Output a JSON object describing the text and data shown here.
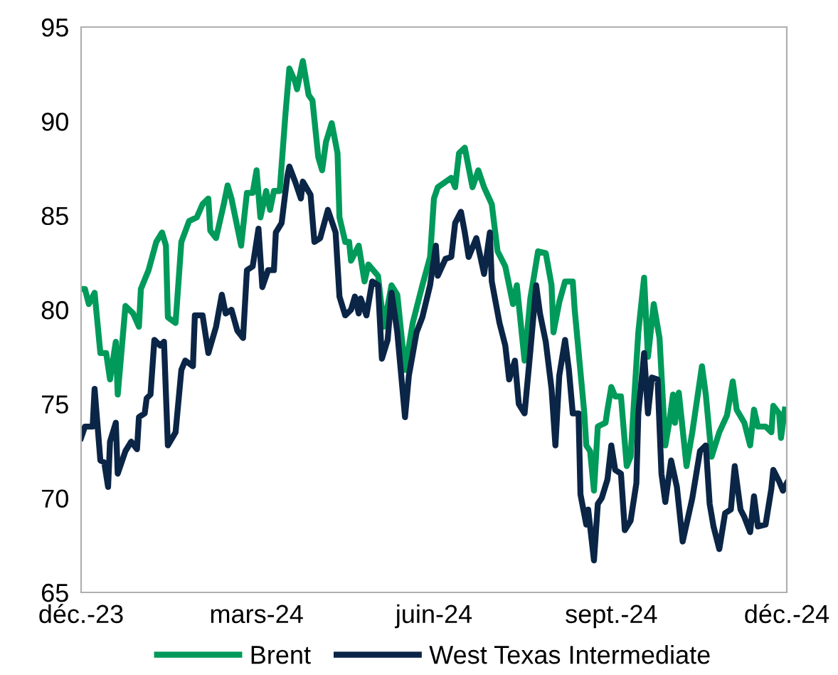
{
  "chart_data": {
    "type": "line",
    "xlim": [
      "2023-12-01",
      "2024-12-01"
    ],
    "xticks": [
      {
        "value": "2023-12-01",
        "label": "déc.-23"
      },
      {
        "value": "2024-03-01",
        "label": "mars-24"
      },
      {
        "value": "2024-06-01",
        "label": "juin-24"
      },
      {
        "value": "2024-09-01",
        "label": "sept.-24"
      },
      {
        "value": "2024-12-01",
        "label": "déc.-24"
      }
    ],
    "ylim": [
      65,
      95
    ],
    "yticks": [
      65,
      70,
      75,
      80,
      85,
      90,
      95
    ],
    "grid": false,
    "legend": "bottom",
    "marker": "none",
    "line_style": "solid",
    "series": [
      {
        "name": "Brent",
        "color": "#009a5a",
        "x": [
          "2023-12-01",
          "2023-12-03",
          "2023-12-05",
          "2023-12-08",
          "2023-12-11",
          "2023-12-14",
          "2023-12-16",
          "2023-12-19",
          "2023-12-20",
          "2023-12-24",
          "2023-12-28",
          "2023-12-31",
          "2024-01-01",
          "2024-01-05",
          "2024-01-09",
          "2024-01-12",
          "2024-01-14",
          "2024-01-15",
          "2024-01-19",
          "2024-01-22",
          "2024-01-26",
          "2024-01-30",
          "2024-02-02",
          "2024-02-05",
          "2024-02-06",
          "2024-02-09",
          "2024-02-13",
          "2024-02-15",
          "2024-02-17",
          "2024-02-22",
          "2024-02-25",
          "2024-02-28",
          "2024-03-01",
          "2024-03-03",
          "2024-03-06",
          "2024-03-08",
          "2024-03-10",
          "2024-03-13",
          "2024-03-16",
          "2024-03-18",
          "2024-03-21",
          "2024-03-22",
          "2024-03-25",
          "2024-03-28",
          "2024-03-30",
          "2024-04-02",
          "2024-04-04",
          "2024-04-06",
          "2024-04-09",
          "2024-04-12",
          "2024-04-13",
          "2024-04-16",
          "2024-04-18",
          "2024-04-19",
          "2024-04-23",
          "2024-04-26",
          "2024-04-28",
          "2024-05-03",
          "2024-05-06",
          "2024-05-10",
          "2024-05-13",
          "2024-05-17",
          "2024-05-21",
          "2024-05-26",
          "2024-05-30",
          "2024-06-01",
          "2024-06-03",
          "2024-06-10",
          "2024-06-12",
          "2024-06-14",
          "2024-06-17",
          "2024-06-21",
          "2024-06-24",
          "2024-06-27",
          "2024-07-01",
          "2024-07-04",
          "2024-07-08",
          "2024-07-12",
          "2024-07-14",
          "2024-07-18",
          "2024-07-21",
          "2024-07-25",
          "2024-07-29",
          "2024-08-01",
          "2024-08-02",
          "2024-08-05",
          "2024-08-08",
          "2024-08-12",
          "2024-08-13",
          "2024-08-15",
          "2024-08-18",
          "2024-08-19",
          "2024-08-21",
          "2024-08-23",
          "2024-08-25",
          "2024-08-29",
          "2024-08-30",
          "2024-09-01",
          "2024-09-03",
          "2024-09-06",
          "2024-09-09",
          "2024-09-11",
          "2024-09-15",
          "2024-09-18",
          "2024-09-20",
          "2024-09-23",
          "2024-09-26",
          "2024-09-29",
          "2024-10-01",
          "2024-10-03",
          "2024-10-04",
          "2024-10-06",
          "2024-10-10",
          "2024-10-13",
          "2024-10-18",
          "2024-10-20",
          "2024-10-23",
          "2024-10-27",
          "2024-10-31",
          "2024-11-03",
          "2024-11-05",
          "2024-11-09",
          "2024-11-12",
          "2024-11-14",
          "2024-11-16",
          "2024-11-20",
          "2024-11-23",
          "2024-11-24",
          "2024-11-27",
          "2024-11-28",
          "2024-11-30"
        ],
        "values": [
          81.1,
          81.1,
          80.3,
          80.9,
          77.7,
          77.7,
          76.3,
          78.3,
          75.5,
          80.2,
          79.8,
          79.1,
          81.1,
          82.1,
          83.6,
          84.1,
          83.4,
          79.6,
          79.3,
          83.6,
          84.7,
          84.9,
          85.6,
          85.9,
          84.2,
          83.8,
          85.6,
          86.6,
          85.9,
          83.4,
          86.2,
          86.2,
          87.4,
          84.9,
          86.3,
          85.3,
          86.3,
          86.3,
          90.4,
          92.8,
          92.1,
          91.7,
          93.2,
          91.4,
          91.1,
          88.1,
          87.4,
          88.9,
          89.9,
          88.3,
          84.9,
          83.6,
          83.6,
          82.6,
          83.4,
          81.5,
          82.4,
          81.8,
          79.1,
          81.3,
          80.8,
          76.8,
          79.3,
          81.3,
          82.8,
          85.9,
          86.5,
          87.0,
          86.5,
          88.3,
          88.6,
          86.5,
          87.4,
          86.5,
          85.6,
          83.1,
          82.3,
          80.3,
          81.3,
          77.3,
          80.6,
          83.1,
          83.0,
          81.3,
          78.8,
          80.4,
          81.5,
          81.5,
          80.0,
          77.8,
          74.5,
          72.8,
          72.5,
          70.4,
          73.8,
          74.0,
          74.7,
          75.9,
          75.4,
          75.4,
          71.7,
          72.2,
          78.8,
          81.7,
          77.5,
          80.3,
          78.5,
          72.8,
          74.0,
          75.5,
          74.0,
          75.6,
          71.7,
          73.5,
          77.0,
          75.5,
          72.2,
          73.5,
          74.4,
          76.2,
          74.7,
          74.0,
          72.8,
          74.7,
          73.8,
          73.8,
          73.5,
          74.9,
          74.5,
          73.2,
          74.7
        ]
      },
      {
        "name": "West Texas Intermediate",
        "color": "#0b2546",
        "x": [
          "2023-12-01",
          "2023-12-03",
          "2023-12-07",
          "2023-12-08",
          "2023-12-11",
          "2023-12-13",
          "2023-12-15",
          "2023-12-16",
          "2023-12-19",
          "2023-12-20",
          "2023-12-24",
          "2023-12-27",
          "2023-12-30",
          "2023-12-31",
          "2024-01-03",
          "2024-01-04",
          "2024-01-06",
          "2024-01-08",
          "2024-01-11",
          "2024-01-13",
          "2024-01-15",
          "2024-01-19",
          "2024-01-22",
          "2024-01-24",
          "2024-01-28",
          "2024-01-29",
          "2024-02-02",
          "2024-02-05",
          "2024-02-09",
          "2024-02-12",
          "2024-02-14",
          "2024-02-17",
          "2024-02-20",
          "2024-02-23",
          "2024-02-25",
          "2024-02-28",
          "2024-03-02",
          "2024-03-04",
          "2024-03-07",
          "2024-03-10",
          "2024-03-11",
          "2024-03-14",
          "2024-03-17",
          "2024-03-18",
          "2024-03-21",
          "2024-03-24",
          "2024-03-25",
          "2024-03-29",
          "2024-03-31",
          "2024-04-03",
          "2024-04-07",
          "2024-04-11",
          "2024-04-13",
          "2024-04-16",
          "2024-04-19",
          "2024-04-21",
          "2024-04-23",
          "2024-04-24",
          "2024-04-27",
          "2024-04-30",
          "2024-05-03",
          "2024-05-05",
          "2024-05-08",
          "2024-05-10",
          "2024-05-13",
          "2024-05-17",
          "2024-05-19",
          "2024-05-23",
          "2024-05-26",
          "2024-05-30",
          "2024-06-02",
          "2024-06-03",
          "2024-06-07",
          "2024-06-10",
          "2024-06-12",
          "2024-06-15",
          "2024-06-17",
          "2024-06-19",
          "2024-06-23",
          "2024-06-27",
          "2024-06-30",
          "2024-07-01",
          "2024-07-05",
          "2024-07-08",
          "2024-07-10",
          "2024-07-13",
          "2024-07-15",
          "2024-07-18",
          "2024-07-21",
          "2024-07-24",
          "2024-07-26",
          "2024-07-29",
          "2024-08-01",
          "2024-08-03",
          "2024-08-05",
          "2024-08-08",
          "2024-08-10",
          "2024-08-12",
          "2024-08-15",
          "2024-08-16",
          "2024-08-19",
          "2024-08-20",
          "2024-08-23",
          "2024-08-25",
          "2024-08-27",
          "2024-08-30",
          "2024-09-01",
          "2024-09-03",
          "2024-09-06",
          "2024-09-08",
          "2024-09-11",
          "2024-09-14",
          "2024-09-15",
          "2024-09-18",
          "2024-09-20",
          "2024-09-22",
          "2024-09-25",
          "2024-09-27",
          "2024-09-29",
          "2024-10-02",
          "2024-10-05",
          "2024-10-08",
          "2024-10-13",
          "2024-10-17",
          "2024-10-20",
          "2024-10-22",
          "2024-10-24",
          "2024-10-27",
          "2024-10-30",
          "2024-11-02",
          "2024-11-04",
          "2024-11-07",
          "2024-11-09",
          "2024-11-12",
          "2024-11-14",
          "2024-11-16",
          "2024-11-20",
          "2024-11-23",
          "2024-11-24",
          "2024-11-27",
          "2024-11-29",
          "2024-12-01"
        ],
        "values": [
          73.2,
          73.8,
          73.8,
          75.8,
          72.0,
          71.9,
          70.6,
          73.0,
          74.0,
          71.3,
          72.5,
          73.0,
          72.6,
          74.3,
          74.5,
          75.3,
          75.5,
          78.4,
          78.1,
          78.3,
          72.8,
          73.5,
          76.8,
          77.3,
          77.0,
          79.7,
          79.7,
          77.7,
          79.1,
          80.8,
          79.8,
          80.0,
          78.9,
          78.5,
          82.1,
          82.3,
          84.3,
          81.2,
          82.1,
          82.1,
          84.1,
          84.6,
          87.1,
          87.6,
          86.8,
          85.9,
          86.8,
          86.1,
          83.6,
          83.8,
          85.3,
          84.1,
          80.7,
          79.7,
          80.0,
          80.7,
          79.8,
          80.6,
          79.7,
          81.5,
          81.3,
          77.4,
          78.4,
          80.9,
          78.8,
          74.3,
          76.5,
          78.8,
          79.6,
          81.3,
          83.4,
          81.8,
          82.7,
          82.8,
          84.6,
          85.2,
          84.1,
          82.8,
          83.8,
          81.9,
          84.1,
          81.5,
          79.3,
          78.1,
          76.3,
          77.3,
          75.0,
          74.5,
          77.8,
          81.3,
          79.8,
          78.3,
          75.8,
          72.8,
          76.5,
          78.4,
          76.8,
          74.5,
          74.5,
          70.2,
          68.6,
          69.4,
          66.7,
          69.7,
          70.0,
          71.0,
          72.8,
          71.5,
          71.3,
          68.3,
          68.8,
          70.8,
          74.5,
          77.7,
          74.5,
          76.4,
          76.3,
          71.3,
          69.8,
          72.0,
          70.6,
          67.7,
          70.0,
          72.5,
          72.8,
          69.7,
          68.5,
          67.3,
          69.2,
          69.4,
          71.7,
          69.4,
          69.0,
          68.2,
          70.1,
          68.5,
          68.6,
          70.5,
          71.5,
          70.9,
          70.4,
          70.8
        ]
      }
    ]
  }
}
